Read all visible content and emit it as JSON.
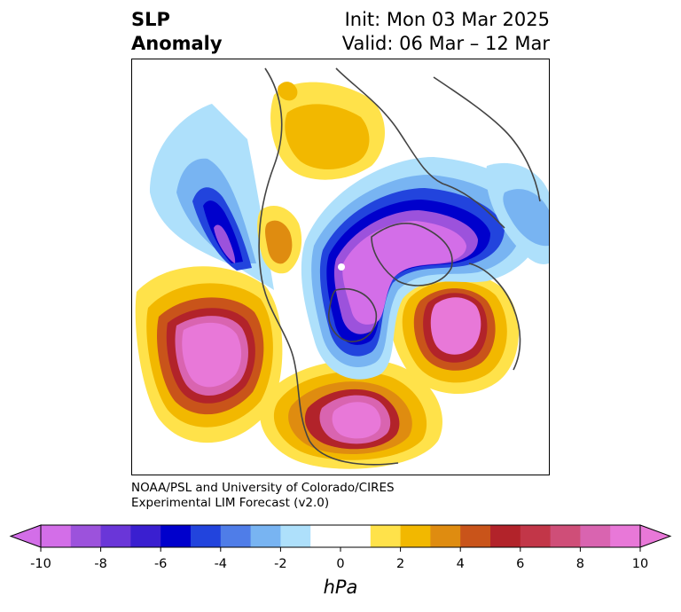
{
  "title": {
    "left_line1": "SLP",
    "left_line2": "Anomaly",
    "right_line1": "Init: Mon 03 Mar 2025",
    "right_line2": "Valid: 06 Mar – 12 Mar"
  },
  "credit": {
    "line1": "NOAA/PSL and University of Colorado/CIRES",
    "line2": "Experimental LIM Forecast (v2.0)"
  },
  "colorbar": {
    "unit": "hPa",
    "ticks": [
      "-10",
      "-8",
      "-6",
      "-4",
      "-2",
      "0",
      "2",
      "4",
      "6",
      "8",
      "10"
    ],
    "colors": [
      "#d36ee8",
      "#9c52dc",
      "#6a36d8",
      "#3a1fd0",
      "#0000cc",
      "#2244dd",
      "#4f7de8",
      "#78b4f2",
      "#aee0fb",
      "#ffffff",
      "#ffffff",
      "#ffe24a",
      "#f2b800",
      "#df8c10",
      "#c9541a",
      "#b2232a",
      "#c23648",
      "#cf4e78",
      "#d964b0",
      "#e878d8"
    ]
  },
  "map": {
    "projection": "north-polar-stereographic",
    "anomalies": [
      {
        "region": "Northeast Pacific / Gulf of Alaska",
        "sign": "positive",
        "peak_hpa": 10
      },
      {
        "region": "Eastern United States / Western Atlantic",
        "sign": "positive",
        "peak_hpa": 10
      },
      {
        "region": "Western Europe / North Atlantic",
        "sign": "positive",
        "peak_hpa": 10
      },
      {
        "region": "Arctic / Central Siberia",
        "sign": "negative",
        "peak_hpa": -10
      },
      {
        "region": "Western North Pacific",
        "sign": "negative",
        "peak_hpa": -10
      },
      {
        "region": "Central Asia",
        "sign": "positive",
        "peak_hpa": 4
      }
    ]
  }
}
